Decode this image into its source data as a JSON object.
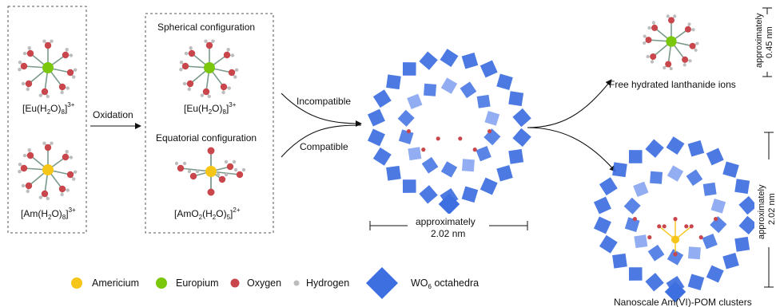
{
  "colors": {
    "americium": "#f5c518",
    "europium": "#7ac70c",
    "oxygen": "#c9474c",
    "hydrogen": "#bdbdbd",
    "octahedra": "#3d6fe0",
    "octahedra_light": "#7f9fee",
    "bond": "#7a9a8a"
  },
  "left_box": {
    "eu_formula": {
      "base": "[Eu(H",
      "sub1": "2",
      "mid": "O)",
      "sub2": "8",
      "close": "]",
      "sup": "3+"
    },
    "am_formula": {
      "base": "[Am(H",
      "sub1": "2",
      "mid": "O)",
      "sub2": "8",
      "close": "]",
      "sup": "3+"
    }
  },
  "oxidation_label": "Oxidation",
  "middle_box": {
    "spherical_title": "Spherical configuration",
    "eu_formula": {
      "base": "[Eu(H",
      "sub1": "2",
      "mid": "O)",
      "sub2": "8",
      "close": "]",
      "sup": "3+"
    },
    "equatorial_title": "Equatorial configuration",
    "amo2_formula": {
      "base": "[AmO",
      "sub1": "2",
      "mid": "(H",
      "sub2": "2",
      "mid2": "O)",
      "sub3": "5",
      "close": "]",
      "sup": "2+"
    }
  },
  "arrows": {
    "incompatible": "Incompatible",
    "compatible": "Compatible"
  },
  "center_cluster": {
    "scale_line1": "approximately",
    "scale_line2": "2.02 nm"
  },
  "right_top": {
    "caption": "Free hydrated lanthanide ions",
    "scale_line1": "approximately",
    "scale_line2": "0.45 nm"
  },
  "right_bottom": {
    "caption": "Nanoscale Am(VI)-POM clusters",
    "scale_line1": "approximately",
    "scale_line2": "2.02 nm"
  },
  "legend": [
    {
      "label": "Americium",
      "icon": "americium-dot"
    },
    {
      "label": "Europium",
      "icon": "europium-dot"
    },
    {
      "label": "Oxygen",
      "icon": "oxygen-dot"
    },
    {
      "label": "Hydrogen",
      "icon": "hydrogen-dot"
    },
    {
      "label_base": "WO",
      "label_sub": "6",
      "label_rest": " octahedra",
      "icon": "octahedron-diamond"
    }
  ]
}
